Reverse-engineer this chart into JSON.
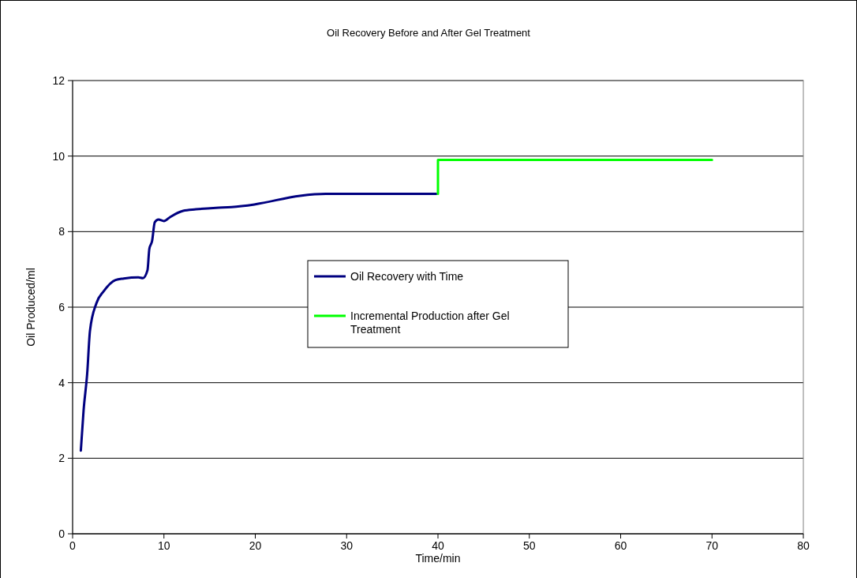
{
  "chart_data": {
    "type": "line",
    "title": "Oil Recovery Before and After Gel Treatment",
    "xlabel": "Time/min",
    "ylabel": "Oil Produced/ml",
    "xlim": [
      0,
      80
    ],
    "xticks": [
      0,
      10,
      20,
      30,
      40,
      50,
      60,
      70,
      80
    ],
    "ylim": [
      0,
      12
    ],
    "yticks": [
      0,
      2,
      4,
      6,
      8,
      10,
      12
    ],
    "grid": "y",
    "legend": "center",
    "marker": "none",
    "line_style": "solid",
    "series": [
      {
        "name": "Oil Recovery with Time",
        "color": "#000080",
        "x": [
          0.9,
          1.2,
          1.6,
          1.9,
          2.6,
          3.4,
          4.7,
          5.6,
          7.2,
          7.7,
          8.2,
          8.4,
          8.7,
          9.0,
          9.4,
          10.0,
          10.7,
          12.1,
          13.5,
          15.7,
          17.4,
          19.9,
          24.9,
          27.7,
          39.8
        ],
        "values": [
          2.2,
          3.26,
          4.25,
          5.37,
          6.1,
          6.42,
          6.72,
          6.76,
          6.79,
          6.77,
          6.98,
          7.54,
          7.75,
          8.25,
          8.32,
          8.28,
          8.39,
          8.55,
          8.59,
          8.63,
          8.65,
          8.72,
          8.95,
          9.0,
          9.0
        ]
      },
      {
        "name": "Incremental Production after Gel Treatment",
        "color": "#00ff00",
        "x": [
          40,
          40,
          70
        ],
        "values": [
          9.0,
          9.9,
          9.9
        ]
      }
    ]
  }
}
